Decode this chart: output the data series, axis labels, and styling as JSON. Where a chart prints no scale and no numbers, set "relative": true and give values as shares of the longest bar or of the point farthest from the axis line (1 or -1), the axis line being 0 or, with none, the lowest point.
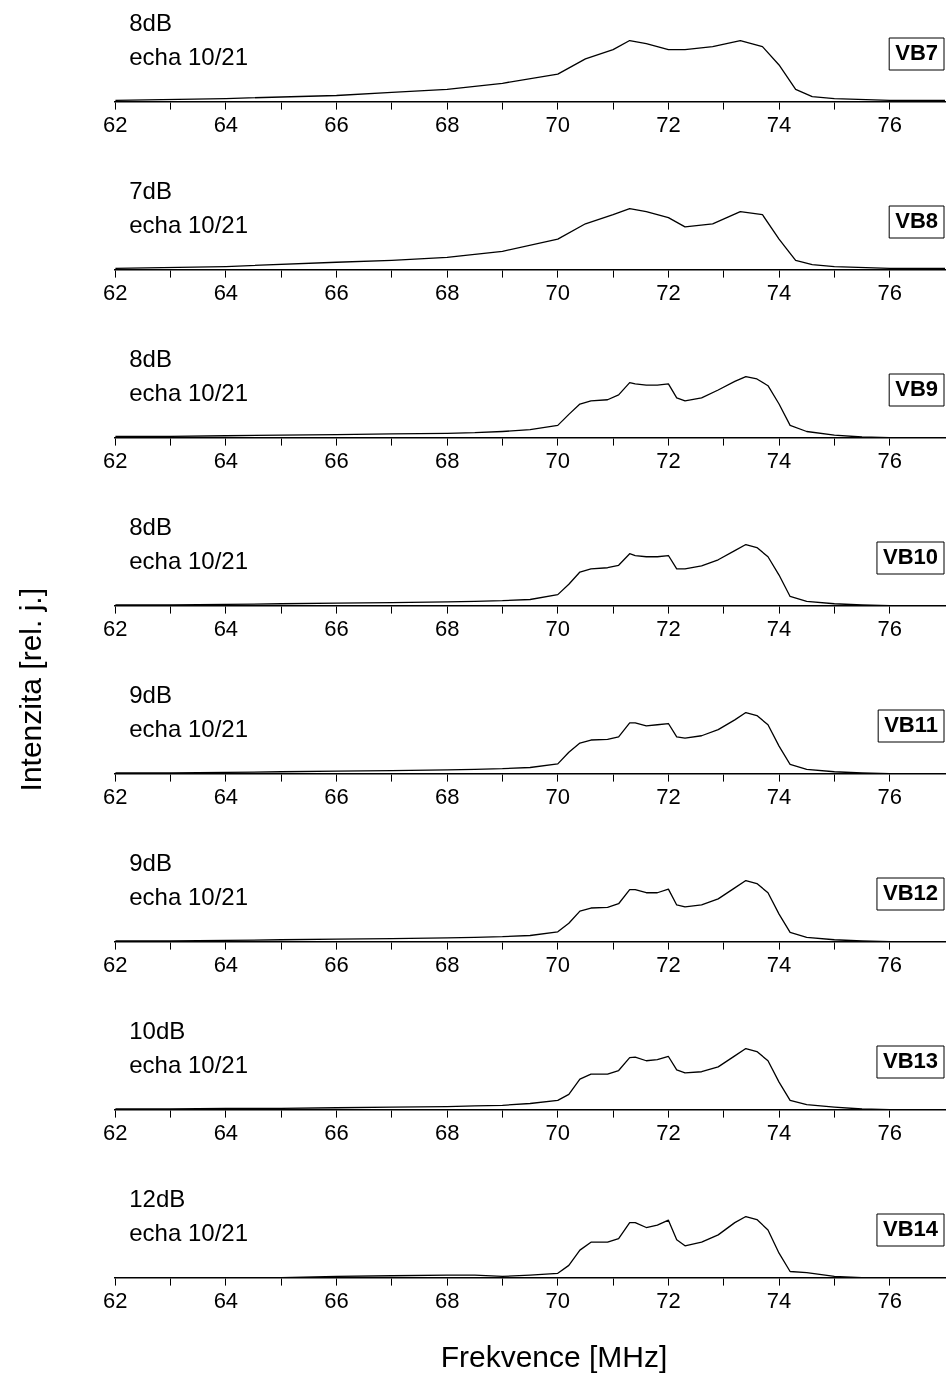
{
  "chart_data": [
    {
      "type": "line",
      "title": "VB7",
      "annotations": [
        "8dB",
        "echa 10/21"
      ],
      "relative": true,
      "color": "#000000",
      "marker": "none",
      "legend": false,
      "grid": false,
      "xlim": [
        62,
        77
      ],
      "xticks": [
        62,
        {
          "value": 63,
          "label": null
        },
        64,
        {
          "value": 65,
          "label": null
        },
        66,
        {
          "value": 67,
          "label": null
        },
        68,
        {
          "value": 69,
          "label": null
        },
        70,
        {
          "value": 71,
          "label": null
        },
        72,
        {
          "value": 73,
          "label": null
        },
        74,
        {
          "value": 75,
          "label": null
        },
        76
      ],
      "x": [
        62,
        64,
        66,
        67,
        68,
        69,
        70,
        70.5,
        71,
        71.3,
        71.6,
        72,
        72.3,
        72.8,
        73.3,
        73.7,
        74,
        74.3,
        74.6,
        75,
        76,
        77
      ],
      "values": [
        0.02,
        0.05,
        0.1,
        0.15,
        0.2,
        0.3,
        0.45,
        0.7,
        0.85,
        1,
        0.95,
        0.85,
        0.85,
        0.9,
        1,
        0.9,
        0.6,
        0.2,
        0.08,
        0.05,
        0.02,
        0.02
      ]
    },
    {
      "type": "line",
      "title": "VB8",
      "annotations": [
        "7dB",
        "echa 10/21"
      ],
      "relative": true,
      "color": "#000000",
      "marker": "none",
      "legend": false,
      "grid": false,
      "xlim": [
        62,
        77
      ],
      "xticks": [
        62,
        {
          "value": 63,
          "label": null
        },
        64,
        {
          "value": 65,
          "label": null
        },
        66,
        {
          "value": 67,
          "label": null
        },
        68,
        {
          "value": 69,
          "label": null
        },
        70,
        {
          "value": 71,
          "label": null
        },
        72,
        {
          "value": 73,
          "label": null
        },
        74,
        {
          "value": 75,
          "label": null
        },
        76
      ],
      "x": [
        62,
        64,
        66,
        67,
        68,
        69,
        70,
        70.5,
        71,
        71.3,
        71.6,
        72,
        72.3,
        72.8,
        73.3,
        73.7,
        74,
        74.3,
        74.6,
        75,
        76,
        77
      ],
      "values": [
        0.02,
        0.05,
        0.12,
        0.15,
        0.2,
        0.3,
        0.5,
        0.75,
        0.9,
        1,
        0.95,
        0.85,
        0.7,
        0.75,
        0.95,
        0.9,
        0.5,
        0.15,
        0.08,
        0.05,
        0.02,
        0.02
      ]
    },
    {
      "type": "line",
      "title": "VB9",
      "annotations": [
        "8dB",
        "echa 10/21"
      ],
      "relative": true,
      "color": "#000000",
      "marker": "none",
      "legend": false,
      "grid": false,
      "xlim": [
        62,
        77
      ],
      "xticks": [
        62,
        {
          "value": 63,
          "label": null
        },
        64,
        {
          "value": 65,
          "label": null
        },
        66,
        {
          "value": 67,
          "label": null
        },
        68,
        {
          "value": 69,
          "label": null
        },
        70,
        {
          "value": 71,
          "label": null
        },
        72,
        {
          "value": 73,
          "label": null
        },
        74,
        {
          "value": 75,
          "label": null
        },
        76
      ],
      "x": [
        62,
        63,
        64,
        65,
        66,
        67,
        68,
        68.5,
        69,
        69.5,
        70,
        70.2,
        70.4,
        70.6,
        70.9,
        71.1,
        71.3,
        71.4,
        71.6,
        71.8,
        72,
        72.15,
        72.3,
        72.6,
        72.9,
        73.2,
        73.4,
        73.6,
        73.8,
        74,
        74.2,
        74.5,
        75,
        75.5,
        76,
        77
      ],
      "values": [
        0.02,
        0.02,
        0.03,
        0.04,
        0.05,
        0.06,
        0.07,
        0.08,
        0.1,
        0.13,
        0.2,
        0.38,
        0.55,
        0.6,
        0.62,
        0.7,
        0.9,
        0.88,
        0.86,
        0.86,
        0.88,
        0.65,
        0.6,
        0.65,
        0.78,
        0.92,
        1,
        0.96,
        0.85,
        0.55,
        0.2,
        0.1,
        0.04,
        0.01,
        0,
        0
      ]
    },
    {
      "type": "line",
      "title": "VB10",
      "annotations": [
        "8dB",
        "echa 10/21"
      ],
      "relative": true,
      "color": "#000000",
      "marker": "none",
      "legend": false,
      "grid": false,
      "xlim": [
        62,
        77
      ],
      "xticks": [
        62,
        {
          "value": 63,
          "label": null
        },
        64,
        {
          "value": 65,
          "label": null
        },
        66,
        {
          "value": 67,
          "label": null
        },
        68,
        {
          "value": 69,
          "label": null
        },
        70,
        {
          "value": 71,
          "label": null
        },
        72,
        {
          "value": 73,
          "label": null
        },
        74,
        {
          "value": 75,
          "label": null
        },
        76
      ],
      "x": [
        62,
        63,
        64,
        65,
        66,
        67,
        68,
        68.5,
        69,
        69.5,
        70,
        70.2,
        70.4,
        70.6,
        70.9,
        71.1,
        71.3,
        71.4,
        71.6,
        71.8,
        72,
        72.15,
        72.3,
        72.6,
        72.9,
        73.2,
        73.4,
        73.6,
        73.8,
        74,
        74.2,
        74.5,
        75,
        75.5,
        76,
        77
      ],
      "values": [
        0.01,
        0.01,
        0.02,
        0.03,
        0.04,
        0.05,
        0.06,
        0.07,
        0.08,
        0.1,
        0.18,
        0.35,
        0.55,
        0.6,
        0.62,
        0.66,
        0.85,
        0.82,
        0.8,
        0.8,
        0.82,
        0.6,
        0.6,
        0.65,
        0.75,
        0.9,
        1,
        0.95,
        0.8,
        0.5,
        0.15,
        0.07,
        0.03,
        0.01,
        0,
        0
      ]
    },
    {
      "type": "line",
      "title": "VB11",
      "annotations": [
        "9dB",
        "echa 10/21"
      ],
      "ylabel": "Intenzita [rel. j.]",
      "relative": true,
      "color": "#000000",
      "marker": "none",
      "legend": false,
      "grid": false,
      "xlim": [
        62,
        77
      ],
      "xticks": [
        62,
        {
          "value": 63,
          "label": null
        },
        64,
        {
          "value": 65,
          "label": null
        },
        66,
        {
          "value": 67,
          "label": null
        },
        68,
        {
          "value": 69,
          "label": null
        },
        70,
        {
          "value": 71,
          "label": null
        },
        72,
        {
          "value": 73,
          "label": null
        },
        74,
        {
          "value": 75,
          "label": null
        },
        76
      ],
      "x": [
        62,
        63,
        64,
        65,
        66,
        67,
        68,
        68.5,
        69,
        69.5,
        70,
        70.2,
        70.4,
        70.6,
        70.9,
        71.1,
        71.3,
        71.4,
        71.6,
        71.8,
        72,
        72.15,
        72.3,
        72.6,
        72.9,
        73.2,
        73.4,
        73.6,
        73.8,
        74,
        74.2,
        74.5,
        75,
        75.5,
        76,
        77
      ],
      "values": [
        0.01,
        0.01,
        0.02,
        0.03,
        0.04,
        0.05,
        0.06,
        0.07,
        0.08,
        0.1,
        0.16,
        0.35,
        0.5,
        0.55,
        0.56,
        0.6,
        0.83,
        0.83,
        0.78,
        0.8,
        0.82,
        0.6,
        0.58,
        0.62,
        0.72,
        0.88,
        1,
        0.95,
        0.8,
        0.45,
        0.15,
        0.07,
        0.03,
        0.01,
        0,
        0
      ]
    },
    {
      "type": "line",
      "title": "VB12",
      "annotations": [
        "9dB",
        "echa 10/21"
      ],
      "relative": true,
      "color": "#000000",
      "marker": "none",
      "legend": false,
      "grid": false,
      "xlim": [
        62,
        77
      ],
      "xticks": [
        62,
        {
          "value": 63,
          "label": null
        },
        64,
        {
          "value": 65,
          "label": null
        },
        66,
        {
          "value": 67,
          "label": null
        },
        68,
        {
          "value": 69,
          "label": null
        },
        70,
        {
          "value": 71,
          "label": null
        },
        72,
        {
          "value": 73,
          "label": null
        },
        74,
        {
          "value": 75,
          "label": null
        },
        76
      ],
      "x": [
        62,
        63,
        64,
        65,
        66,
        67,
        68,
        68.5,
        69,
        69.5,
        70,
        70.2,
        70.4,
        70.6,
        70.9,
        71.1,
        71.3,
        71.4,
        71.6,
        71.8,
        72,
        72.15,
        72.3,
        72.6,
        72.9,
        73.2,
        73.4,
        73.6,
        73.8,
        74,
        74.2,
        74.5,
        75,
        75.5,
        76,
        77
      ],
      "values": [
        0.01,
        0.01,
        0.02,
        0.03,
        0.04,
        0.05,
        0.06,
        0.07,
        0.08,
        0.1,
        0.16,
        0.3,
        0.5,
        0.55,
        0.56,
        0.62,
        0.85,
        0.85,
        0.8,
        0.8,
        0.86,
        0.6,
        0.57,
        0.6,
        0.7,
        0.88,
        1,
        0.95,
        0.8,
        0.45,
        0.15,
        0.07,
        0.03,
        0.01,
        0,
        0
      ]
    },
    {
      "type": "line",
      "title": "VB13",
      "annotations": [
        "10dB",
        "echa 10/21"
      ],
      "relative": true,
      "color": "#000000",
      "marker": "none",
      "legend": false,
      "grid": false,
      "xlim": [
        62,
        77
      ],
      "xticks": [
        62,
        {
          "value": 63,
          "label": null
        },
        64,
        {
          "value": 65,
          "label": null
        },
        66,
        {
          "value": 67,
          "label": null
        },
        68,
        {
          "value": 69,
          "label": null
        },
        70,
        {
          "value": 71,
          "label": null
        },
        72,
        {
          "value": 73,
          "label": null
        },
        74,
        {
          "value": 75,
          "label": null
        },
        76
      ],
      "x": [
        62,
        63,
        64,
        65,
        66,
        67,
        68,
        68.5,
        69,
        69.5,
        70,
        70.2,
        70.4,
        70.6,
        70.9,
        71.1,
        71.3,
        71.4,
        71.6,
        71.8,
        72,
        72.15,
        72.3,
        72.6,
        72.9,
        73.2,
        73.4,
        73.6,
        73.8,
        74,
        74.2,
        74.5,
        75,
        75.5,
        76,
        77
      ],
      "values": [
        0.01,
        0.01,
        0.02,
        0.02,
        0.03,
        0.04,
        0.05,
        0.06,
        0.07,
        0.1,
        0.15,
        0.25,
        0.5,
        0.58,
        0.58,
        0.64,
        0.85,
        0.86,
        0.8,
        0.82,
        0.87,
        0.65,
        0.6,
        0.62,
        0.7,
        0.88,
        1,
        0.95,
        0.8,
        0.45,
        0.15,
        0.08,
        0.04,
        0.01,
        0,
        0
      ]
    },
    {
      "type": "line",
      "title": "VB14",
      "annotations": [
        "12dB",
        "echa 10/21"
      ],
      "xlabel": "Frekvence [MHz]",
      "relative": true,
      "color": "#000000",
      "marker": "none",
      "legend": false,
      "grid": false,
      "xlim": [
        62,
        77
      ],
      "xticks": [
        62,
        {
          "value": 63,
          "label": null
        },
        64,
        {
          "value": 65,
          "label": null
        },
        66,
        {
          "value": 67,
          "label": null
        },
        68,
        {
          "value": 69,
          "label": null
        },
        70,
        {
          "value": 71,
          "label": null
        },
        72,
        {
          "value": 73,
          "label": null
        },
        74,
        {
          "value": 75,
          "label": null
        },
        76
      ],
      "x": [
        62,
        63,
        64,
        65,
        66,
        67,
        68,
        68.5,
        69,
        69.5,
        70,
        70.2,
        70.4,
        70.6,
        70.9,
        71.1,
        71.3,
        71.4,
        71.6,
        71.8,
        72,
        72.15,
        72.3,
        72.6,
        72.9,
        73.2,
        73.4,
        73.6,
        73.8,
        74,
        74.2,
        74.5,
        75,
        75.5
      ],
      "values": [
        0,
        0,
        0,
        0,
        0.02,
        0.03,
        0.04,
        0.04,
        0.02,
        0.04,
        0.07,
        0.2,
        0.45,
        0.58,
        0.58,
        0.64,
        0.9,
        0.9,
        0.82,
        0.86,
        0.94,
        0.62,
        0.52,
        0.58,
        0.7,
        0.9,
        1,
        0.95,
        0.78,
        0.4,
        0.1,
        0.08,
        0.02,
        0
      ]
    }
  ]
}
